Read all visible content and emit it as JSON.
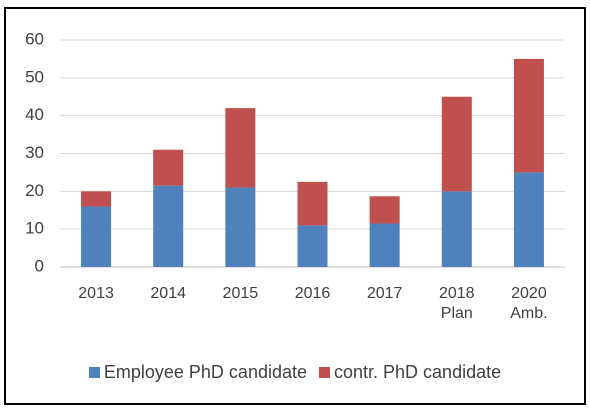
{
  "chart_data": {
    "type": "stacked_bar",
    "categories": [
      "2013",
      "2014",
      "2015",
      "2016",
      "2017",
      "2018\nPlan",
      "2020\nAmb."
    ],
    "series": [
      {
        "name": "Employee PhD candidate",
        "color": "#4f81bd",
        "values": [
          16,
          21.5,
          21,
          11,
          11.5,
          20,
          25
        ]
      },
      {
        "name": "contr. PhD candidate",
        "color": "#c0504d",
        "values": [
          4,
          9.5,
          21,
          11.5,
          7.2,
          25,
          30
        ]
      }
    ],
    "ylim": [
      0,
      60
    ],
    "yticks": [
      0,
      10,
      20,
      30,
      40,
      50,
      60
    ],
    "grid": true,
    "legend": "bottom"
  }
}
